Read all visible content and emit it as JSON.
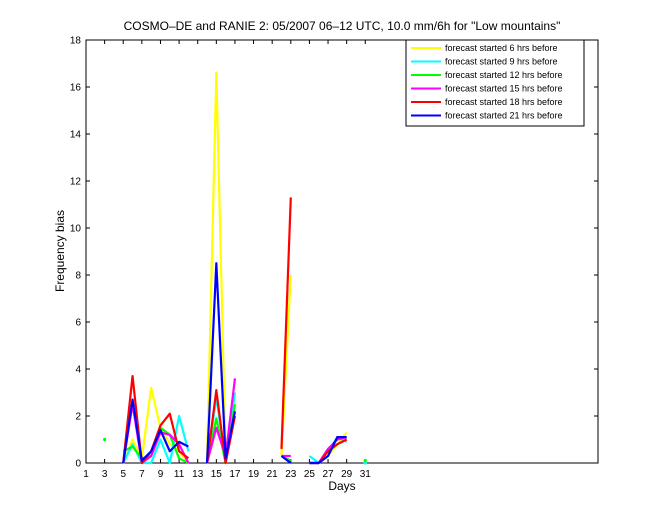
{
  "chart_data": {
    "type": "line",
    "title": "COSMO–DE and RANIE 2: 05/2007 06–12 UTC, 10.0 mm/6h for \"Low mountains\"",
    "xlabel": "Days",
    "ylabel": "Frequency bias",
    "xlim": [
      1,
      56
    ],
    "ylim": [
      0,
      18
    ],
    "xticks": [
      1,
      3,
      5,
      7,
      9,
      11,
      13,
      15,
      17,
      19,
      21,
      23,
      25,
      27,
      29,
      31
    ],
    "yticks": [
      0,
      2,
      4,
      6,
      8,
      10,
      12,
      14,
      16,
      18
    ],
    "legend_position": "top-right",
    "series": [
      {
        "name": "forecast started 6 hrs before",
        "color": "#ffff00",
        "values": [
          null,
          null,
          null,
          null,
          0.0,
          1.0,
          0.2,
          3.2,
          1.5,
          0.8,
          0.5,
          0.0,
          null,
          0.0,
          16.6,
          0.3,
          2.2,
          null,
          null,
          null,
          null,
          0.3,
          8.0,
          null,
          0.0,
          0.0,
          0.3,
          0.8,
          1.3,
          null,
          0.0
        ]
      },
      {
        "name": "forecast started 9 hrs before",
        "color": "#00ffff",
        "values": [
          null,
          null,
          null,
          null,
          0.0,
          0.8,
          0.0,
          0.0,
          1.0,
          0.0,
          2.0,
          0.5,
          null,
          0.0,
          2.8,
          0.0,
          3.0,
          null,
          null,
          null,
          null,
          0.3,
          0.0,
          null,
          0.3,
          0.0,
          0.5,
          1.1,
          0.9,
          null,
          0.0
        ]
      },
      {
        "name": "forecast started 12 hrs before",
        "color": "#00ff00",
        "values": [
          null,
          null,
          1.0,
          null,
          0.5,
          0.7,
          0.2,
          0.3,
          1.5,
          1.2,
          0.2,
          0.0,
          null,
          0.0,
          1.9,
          0.0,
          2.5,
          null,
          null,
          null,
          null,
          0.3,
          0.1,
          null,
          0.0,
          0.0,
          0.5,
          0.8,
          1.0,
          null,
          0.1
        ]
      },
      {
        "name": "forecast started 15 hrs before",
        "color": "#ff00ff",
        "values": [
          null,
          null,
          null,
          null,
          0.0,
          2.5,
          0.0,
          0.3,
          1.3,
          1.2,
          0.8,
          0.0,
          null,
          0.0,
          1.5,
          0.3,
          3.6,
          null,
          null,
          null,
          null,
          0.3,
          0.3,
          null,
          0.0,
          0.0,
          0.6,
          1.0,
          1.1,
          null,
          null
        ]
      },
      {
        "name": "forecast started 18 hrs before",
        "color": "#ff0000",
        "values": [
          null,
          null,
          null,
          null,
          0.0,
          3.7,
          0.0,
          0.5,
          1.6,
          2.1,
          0.5,
          0.2,
          null,
          0.0,
          3.1,
          0.0,
          2.0,
          null,
          null,
          null,
          null,
          0.6,
          11.3,
          null,
          0.0,
          0.0,
          0.5,
          0.8,
          1.0,
          null,
          null
        ]
      },
      {
        "name": "forecast started 21 hrs before",
        "color": "#0000ff",
        "values": [
          null,
          null,
          null,
          null,
          0.0,
          2.7,
          0.1,
          0.5,
          1.4,
          0.5,
          0.9,
          0.7,
          null,
          0.0,
          8.5,
          0.2,
          2.2,
          null,
          null,
          null,
          null,
          0.3,
          0.0,
          null,
          0.0,
          0.0,
          0.3,
          1.1,
          1.1,
          null,
          null
        ]
      }
    ]
  }
}
